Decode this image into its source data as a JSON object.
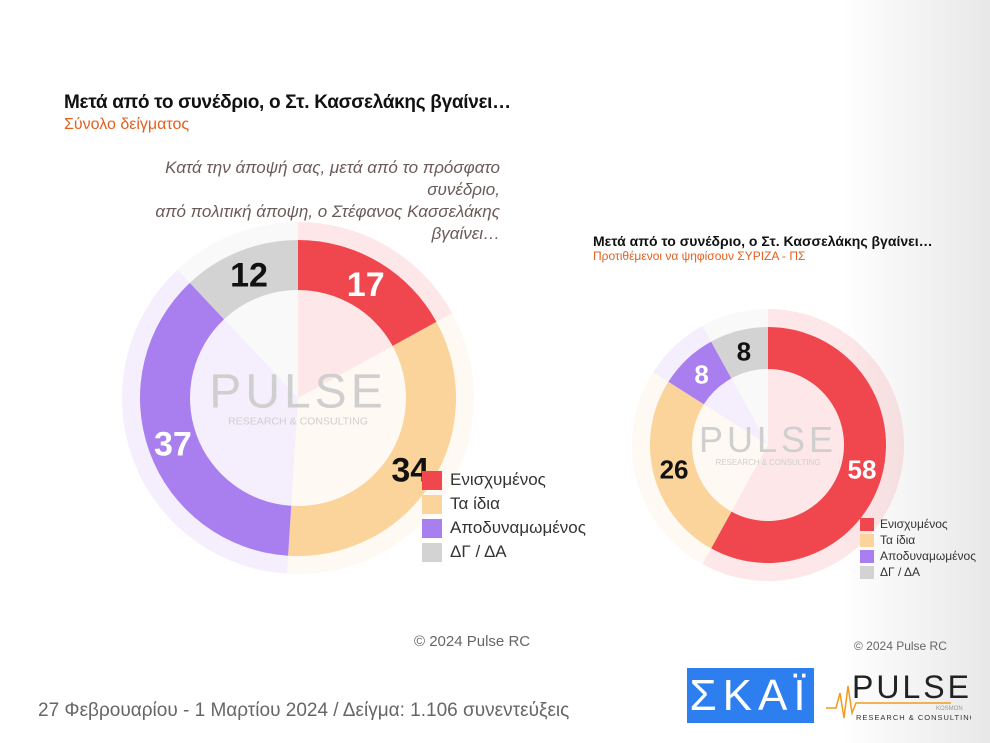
{
  "chart_data": [
    {
      "type": "pie",
      "variant": "donut",
      "title": "Μετά από το συνέδριο, ο Στ. Κασσελάκης βγαίνει…",
      "subtitle": "Σύνολο δείγματος",
      "question": [
        "Κατά την άποψή σας, μετά από το πρόσφατο συνέδριο,",
        "από πολιτική άποψη, ο Στέφανος Κασσελάκης βγαίνει…"
      ],
      "categories": [
        "Ενισχυμένος",
        "Τα ίδια",
        "Αποδυναμωμένος",
        "ΔΓ / ΔΑ"
      ],
      "values": [
        17,
        34,
        37,
        12
      ],
      "legend": "bottom-right"
    },
    {
      "type": "pie",
      "variant": "donut",
      "title": "Μετά από το συνέδριο, ο Στ. Κασσελάκης βγαίνει…",
      "subtitle": "Προτιθέμενοι να ψηφίσουν ΣΥΡΙΖΑ - ΠΣ",
      "categories": [
        "Ενισχυμένος",
        "Τα ίδια",
        "Αποδυναμωμένος",
        "ΔΓ / ΔΑ"
      ],
      "values": [
        58,
        26,
        8,
        8
      ],
      "legend": "bottom-right"
    }
  ],
  "colors": [
    "#f0474f",
    "#fad49a",
    "#a97ff0",
    "#d3d3d3"
  ],
  "label_colors": [
    "#ffffff",
    "#111111",
    "#ffffff",
    "#111111"
  ],
  "watermark": {
    "brand": "PULSE",
    "tagline": "RESEARCH & CONSULTING"
  },
  "copyright1": "© 2024 Pulse RC",
  "copyright2": "© 2024 Pulse RC",
  "footer": "27 Φεβρουαρίου - 1 Μαρτίου 2024  /  Δείγμα:  1.106 συνεντεύξεις",
  "logos": {
    "skai": "ΣΚΑΪ",
    "pulse": "PULSE",
    "pulse_sub": "RESEARCH & CONSULTING",
    "pulse_tag": "KOSMON"
  }
}
